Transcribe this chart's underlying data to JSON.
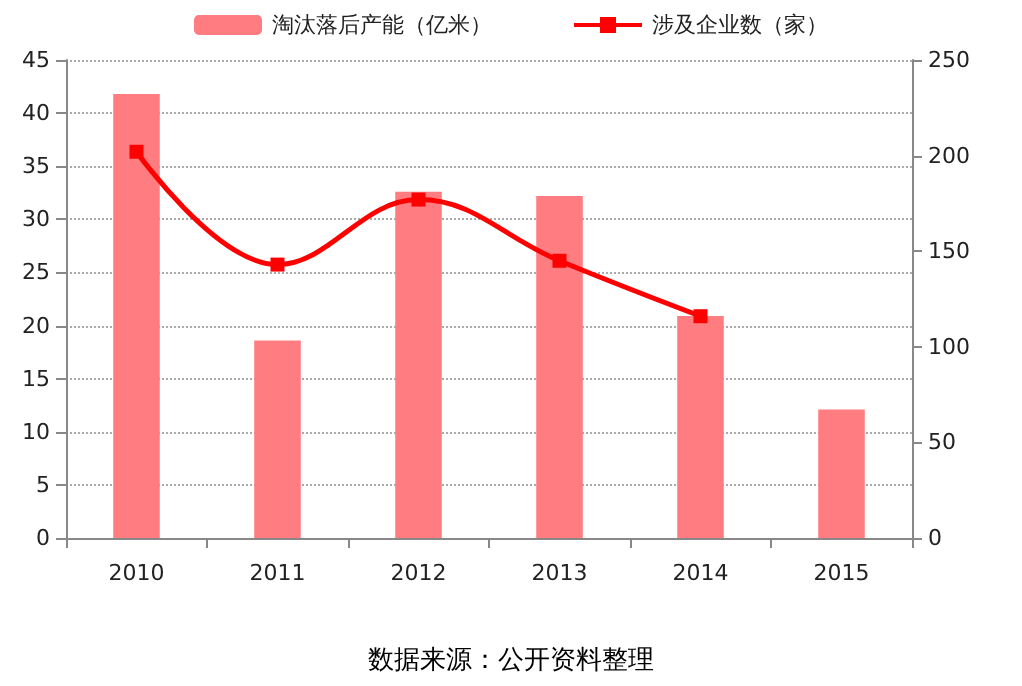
{
  "chart_data": {
    "type": "bar",
    "categories": [
      "2010",
      "2011",
      "2012",
      "2013",
      "2014",
      "2015"
    ],
    "series": [
      {
        "name": "淘汰落后产能（亿米）",
        "type": "bar",
        "color": "#ff7c80",
        "values": [
          41.8,
          18.6,
          32.6,
          32.2,
          20.9,
          12.1
        ]
      },
      {
        "name": "涉及企业数（家）",
        "type": "line",
        "axis": "y2",
        "color": "#ff0000",
        "values": [
          202,
          143,
          177,
          145,
          116,
          null
        ]
      }
    ],
    "ylim": [
      0,
      45
    ],
    "yticks": [
      0,
      5,
      10,
      15,
      20,
      25,
      30,
      35,
      40,
      45
    ],
    "y2lim": [
      0,
      250
    ],
    "y2ticks": [
      0,
      50,
      100,
      150,
      200,
      250
    ],
    "grid": "y",
    "legend": "top",
    "marker": "square",
    "annotations": [
      "数据来源：公开资料整理"
    ]
  }
}
